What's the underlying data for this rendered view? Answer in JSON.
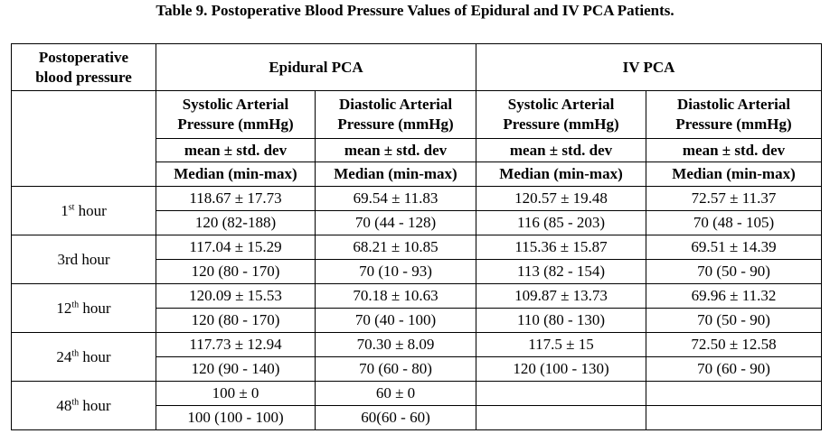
{
  "caption": "Table 9. Postoperative Blood Pressure Values of Epidural and IV PCA Patients.",
  "header": {
    "corner_line1": "Postoperative",
    "corner_line2": "blood pressure",
    "group_epidural": "Epidural PCA",
    "group_iv": "IV PCA",
    "sys_line1": "Systolic Arterial",
    "sys_line2": "Pressure (mmHg)",
    "dia_line1": "Diastolic Arterial",
    "dia_line2": "Pressure (mmHg)",
    "mean_label": "mean ± std. dev",
    "median_label": "Median (min-max)"
  },
  "rows": [
    {
      "time_num": "1",
      "time_sup": "st",
      "time_rest": " hour",
      "mean": [
        "118.67 ± 17.73",
        "69.54 ± 11.83",
        "120.57 ± 19.48",
        "72.57 ± 11.37"
      ],
      "median": [
        "120 (82-188)",
        "70 (44 - 128)",
        "116 (85 - 203)",
        "70 (48 - 105)"
      ]
    },
    {
      "time_num": "3rd",
      "time_sup": "",
      "time_rest": " hour",
      "mean": [
        "117.04 ± 15.29",
        "68.21 ± 10.85",
        "115.36 ± 15.87",
        "69.51 ± 14.39"
      ],
      "median": [
        "120 (80 - 170)",
        "70 (10 - 93)",
        "113 (82 - 154)",
        "70 (50 - 90)"
      ]
    },
    {
      "time_num": "12",
      "time_sup": "th",
      "time_rest": " hour",
      "mean": [
        "120.09 ± 15.53",
        "70.18 ± 10.63",
        "109.87 ± 13.73",
        "69.96 ± 11.32"
      ],
      "median": [
        "120 (80 - 170)",
        "70 (40 - 100)",
        "110 (80 - 130)",
        "70 (50 - 90)"
      ]
    },
    {
      "time_num": "24",
      "time_sup": "th",
      "time_rest": " hour",
      "mean": [
        "117.73 ± 12.94",
        "70.30 ± 8.09",
        "117.5 ± 15",
        "72.50 ± 12.58"
      ],
      "median": [
        "120 (90 - 140)",
        "70 (60 - 80)",
        "120 (100 - 130)",
        "70 (60 - 90)"
      ]
    },
    {
      "time_num": "48",
      "time_sup": "th",
      "time_rest": " hour",
      "mean": [
        "100 ± 0",
        "60 ± 0",
        "",
        ""
      ],
      "median": [
        "100 (100 - 100)",
        "60(60 - 60)",
        "",
        ""
      ]
    }
  ]
}
